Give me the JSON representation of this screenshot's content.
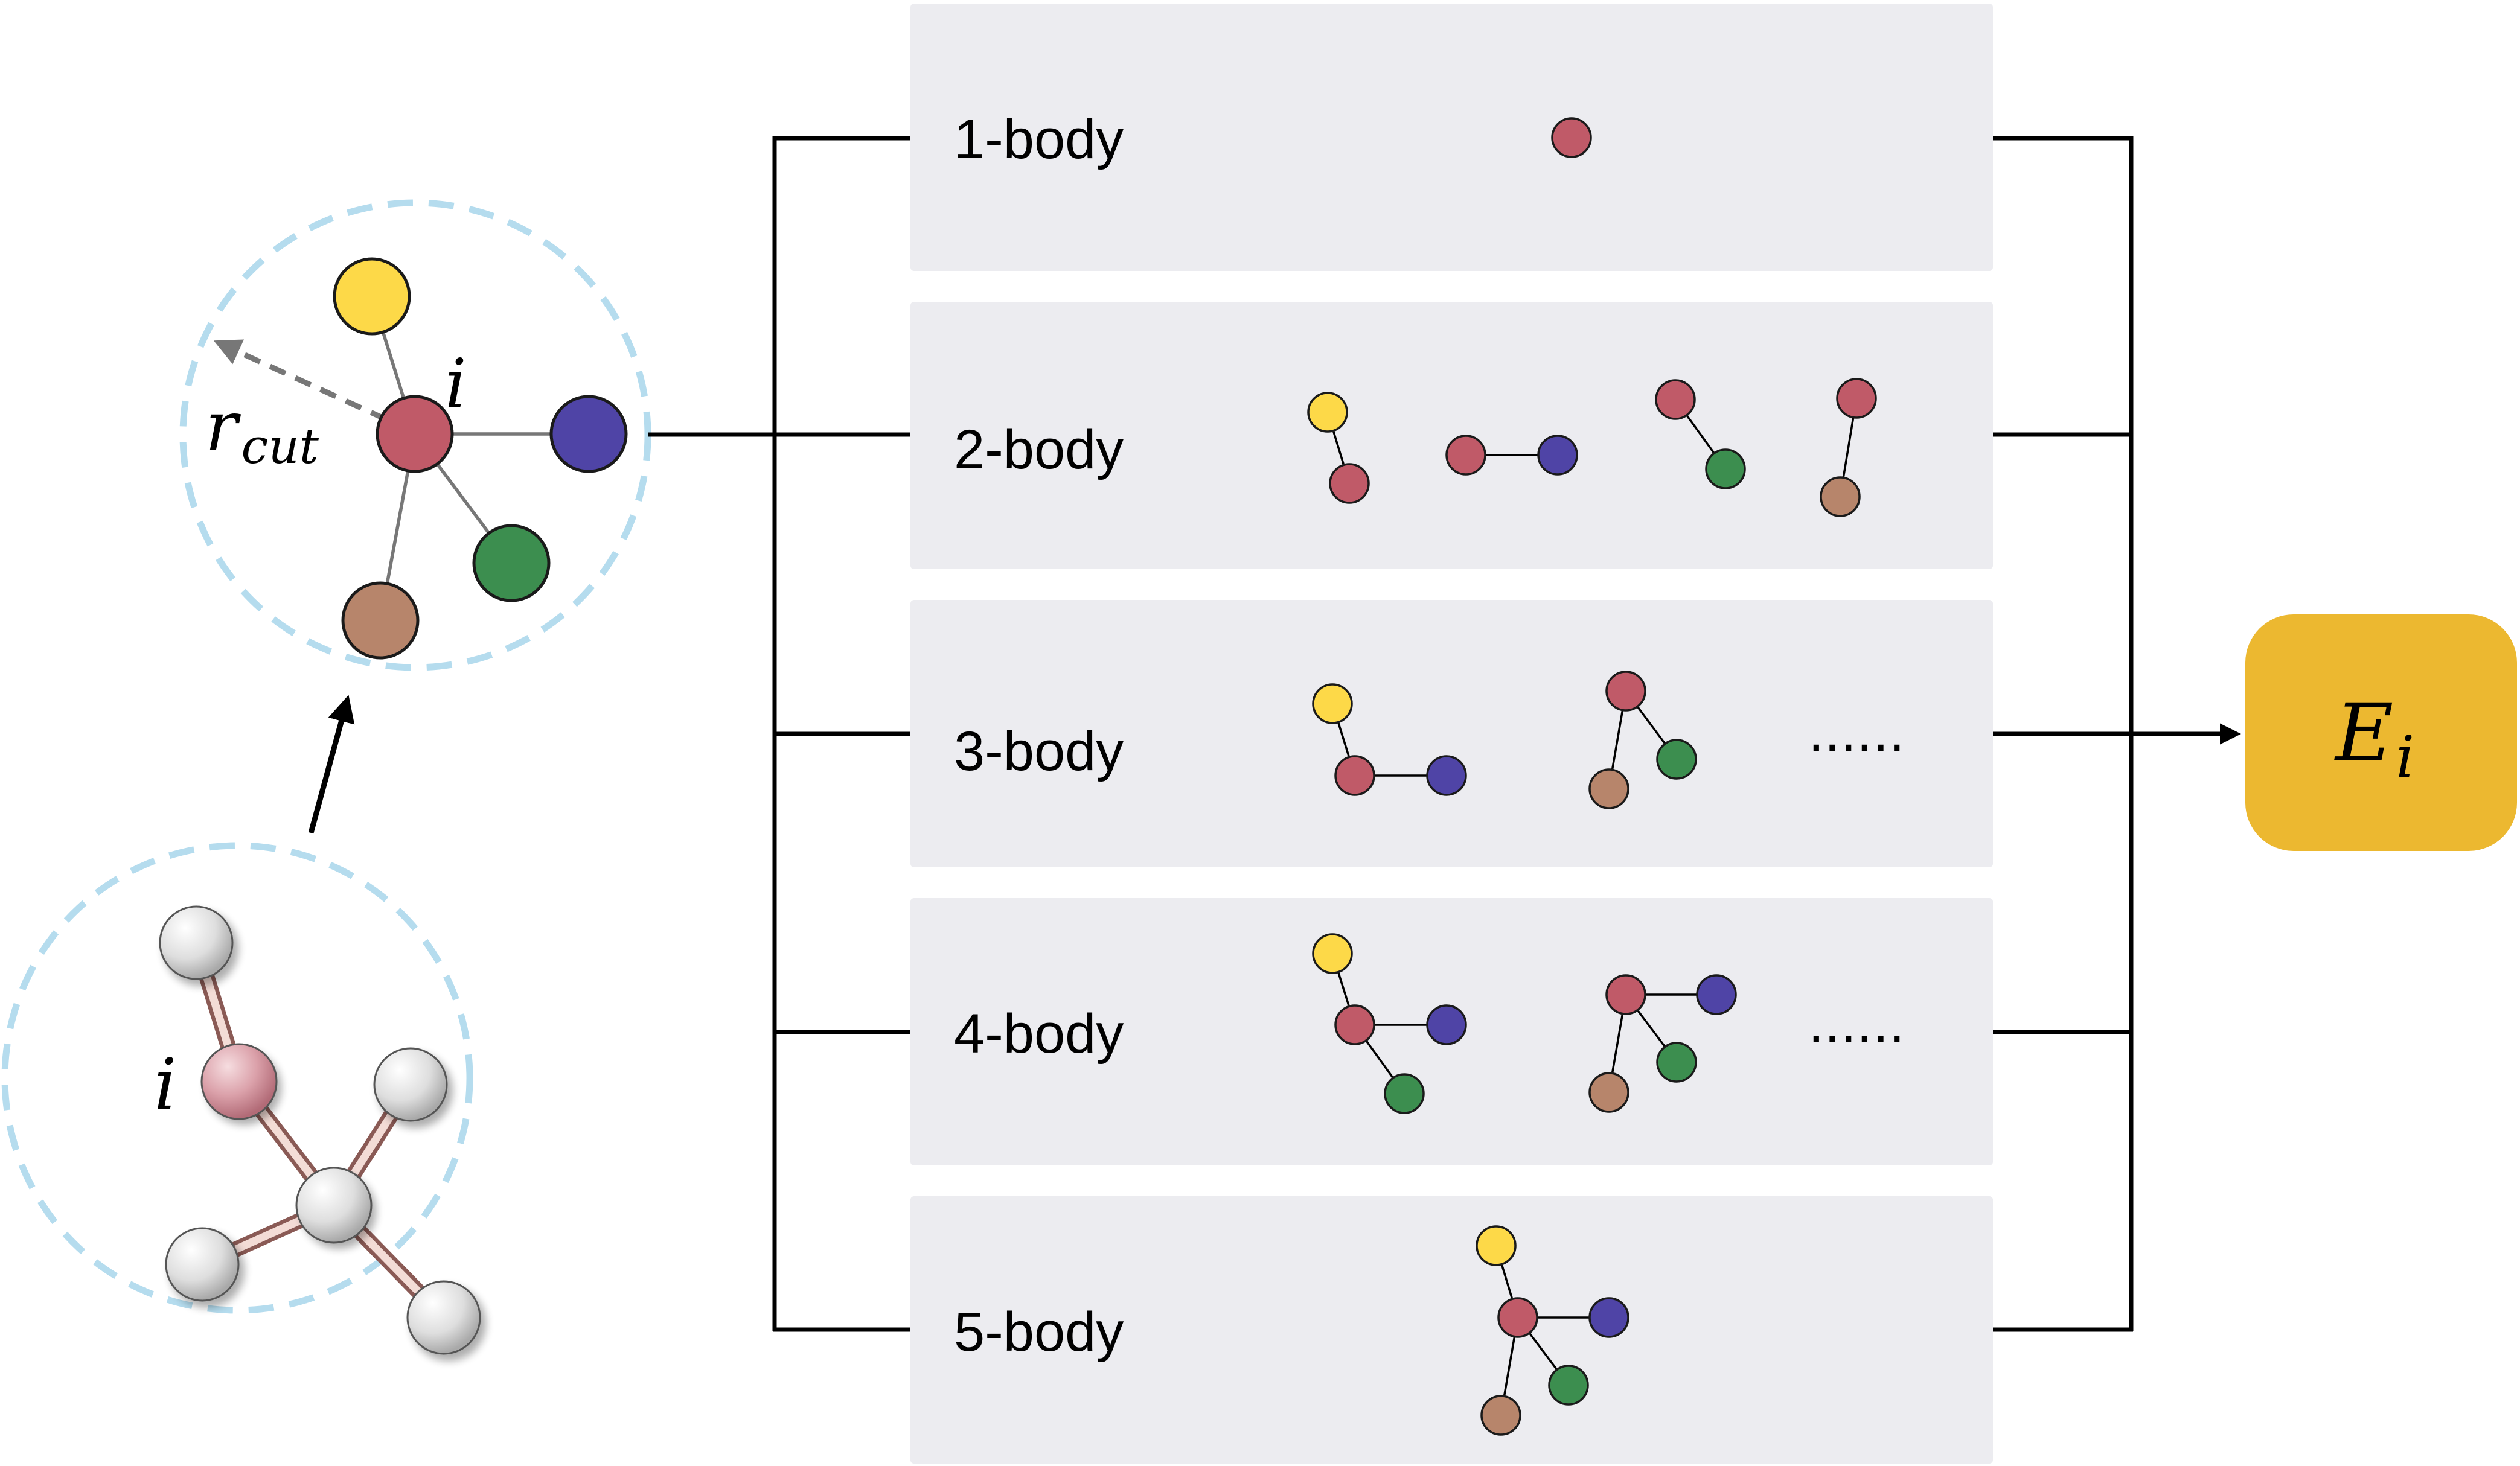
{
  "colors": {
    "panel": "#ececf0",
    "cutoff_circle": "#b5dcee",
    "atom_red": "#c05a68",
    "atom_yellow": "#fdd948",
    "atom_blue": "#4f44a6",
    "atom_green": "#3c8e4f",
    "atom_brown": "#b7856b",
    "atom_grey": "#dcdcdc",
    "output_box": "#ecb830"
  },
  "molecule": {
    "center_label": "i"
  },
  "neighborhood": {
    "center_label": "i",
    "cutoff_label_main": "r",
    "cutoff_label_sub": "cut"
  },
  "body_orders": [
    {
      "label": "1-body",
      "ellipsis": ""
    },
    {
      "label": "2-body",
      "ellipsis": ""
    },
    {
      "label": "3-body",
      "ellipsis": "......"
    },
    {
      "label": "4-body",
      "ellipsis": "......"
    },
    {
      "label": "5-body",
      "ellipsis": ""
    }
  ],
  "output": {
    "label_main": "E",
    "label_sub": "i"
  }
}
